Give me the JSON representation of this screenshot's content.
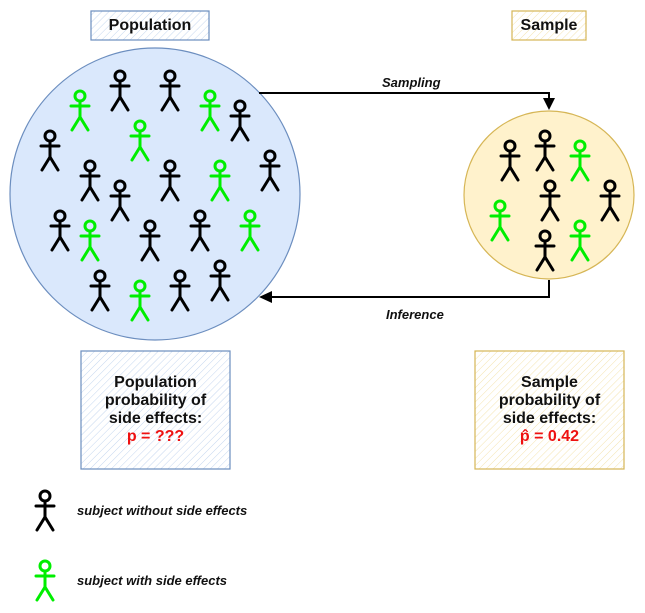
{
  "population": {
    "title": "Population",
    "prob_line1": "Population",
    "prob_line2": "probability of",
    "prob_line3": "side effects:",
    "prob_formula": "p = ???"
  },
  "sample": {
    "title": "Sample",
    "prob_line1": "Sample",
    "prob_line2": "probability of",
    "prob_line3": "side effects:",
    "prob_formula": "p̂ = 0.42"
  },
  "arrows": {
    "sampling": "Sampling",
    "inference": "Inference"
  },
  "legend": {
    "without": "subject without side effects",
    "with": "subject with side effects"
  },
  "colors": {
    "population_fill": "#dae8fc",
    "population_stroke": "#6c8ebf",
    "sample_fill": "#fff2cc",
    "sample_stroke": "#d6b656",
    "no_side_effect": "#000000",
    "side_effect": "#00ee00",
    "formula": "#ee1111"
  }
}
